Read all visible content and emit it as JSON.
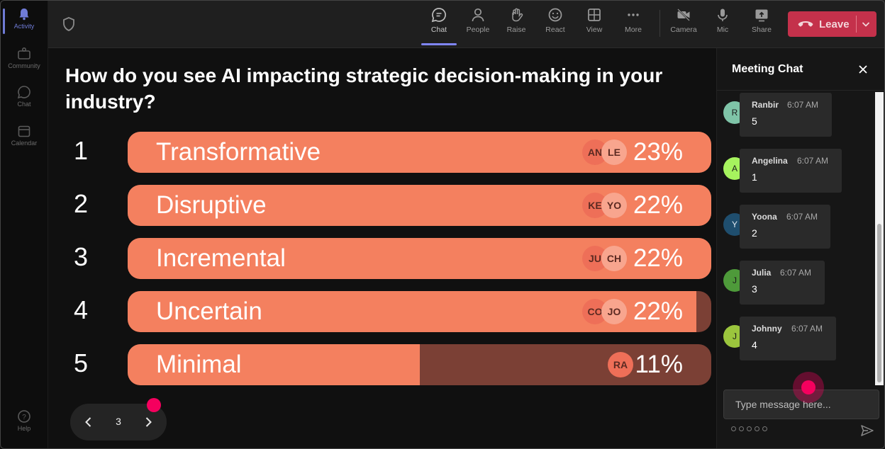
{
  "rail": {
    "items": [
      {
        "label": "Activity",
        "icon": "bell-icon",
        "active": true
      },
      {
        "label": "Community",
        "icon": "community-icon"
      },
      {
        "label": "Chat",
        "icon": "chat-icon"
      },
      {
        "label": "Calendar",
        "icon": "calendar-icon"
      }
    ],
    "help_label": "Help"
  },
  "toolbar": {
    "chat": "Chat",
    "people": "People",
    "raise": "Raise",
    "react": "React",
    "view": "View",
    "more": "More",
    "camera": "Camera",
    "mic": "Mic",
    "share": "Share",
    "leave": "Leave"
  },
  "poll": {
    "question": "How do you see AI impacting strategic decision-making in your industry?",
    "options": [
      {
        "num": "1",
        "label": "Transformative",
        "pct": "23%",
        "fill": 1.0,
        "avatars": [
          "AN",
          "LE"
        ]
      },
      {
        "num": "2",
        "label": "Disruptive",
        "pct": "22%",
        "fill": 1.0,
        "avatars": [
          "KE",
          "YO"
        ]
      },
      {
        "num": "3",
        "label": "Incremental",
        "pct": "22%",
        "fill": 1.0,
        "avatars": [
          "JU",
          "CH"
        ]
      },
      {
        "num": "4",
        "label": "Uncertain",
        "pct": "22%",
        "fill": 0.975,
        "avatars": [
          "CO",
          "JO"
        ]
      },
      {
        "num": "5",
        "label": "Minimal",
        "pct": "11%",
        "fill": 0.5,
        "avatars": [
          "RA"
        ]
      }
    ],
    "page": "3"
  },
  "chat": {
    "title": "Meeting Chat",
    "messages": [
      {
        "initial": "R",
        "name": "Ranbir",
        "time": "6:07 AM",
        "text": "5",
        "color": "#7fc4a8"
      },
      {
        "initial": "A",
        "name": "Angelina",
        "time": "6:07 AM",
        "text": "1",
        "color": "#a6f35e"
      },
      {
        "initial": "Y",
        "name": "Yoona",
        "time": "6:07 AM",
        "text": "2",
        "color": "#1f4e6e"
      },
      {
        "initial": "J",
        "name": "Julia",
        "time": "6:07 AM",
        "text": "3",
        "color": "#4e9a3a"
      },
      {
        "initial": "J",
        "name": "Johnny",
        "time": "6:07 AM",
        "text": "4",
        "color": "#9bc53d"
      }
    ],
    "input_placeholder": "Type message here..."
  },
  "colors": {
    "bar_fill": "#f4805f",
    "bar_track": "#7b4035",
    "leave": "#c4314b",
    "accent": "#7f85f5",
    "cursor": "#f5005e"
  }
}
